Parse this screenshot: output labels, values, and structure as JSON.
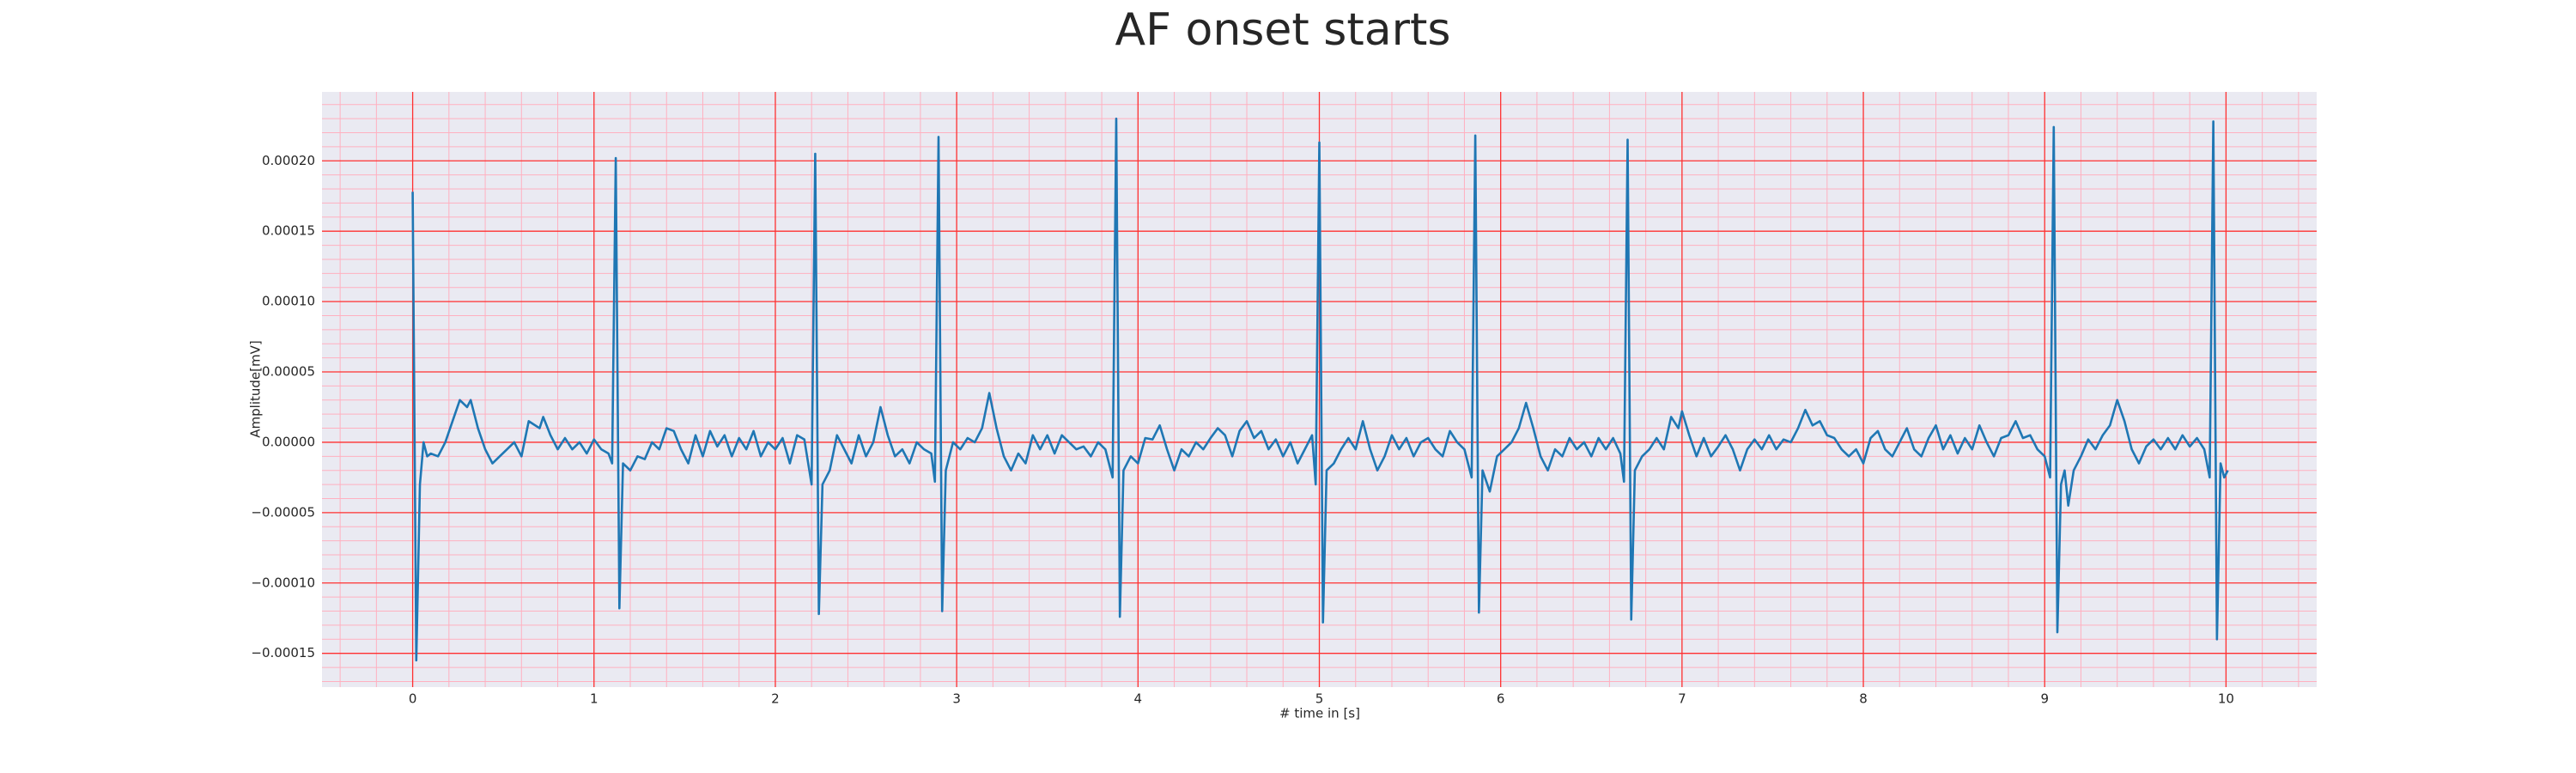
{
  "chart_data": {
    "type": "line",
    "title": "AF onset starts",
    "xlabel": "# time in [s]",
    "ylabel": "Amplitude[mV]",
    "x": [
      0,
      0.02,
      0.04,
      0.06,
      0.08,
      0.1,
      0.14,
      0.18,
      0.22,
      0.26,
      0.3,
      0.32,
      0.36,
      0.4,
      0.44,
      0.48,
      0.52,
      0.56,
      0.6,
      0.64,
      0.7,
      0.72,
      0.76,
      0.8,
      0.84,
      0.88,
      0.92,
      0.96,
      1.0,
      1.04,
      1.08,
      1.1,
      1.12,
      1.14,
      1.16,
      1.2,
      1.24,
      1.28,
      1.32,
      1.36,
      1.4,
      1.44,
      1.48,
      1.52,
      1.56,
      1.6,
      1.64,
      1.68,
      1.72,
      1.76,
      1.8,
      1.84,
      1.88,
      1.92,
      1.96,
      2.0,
      2.04,
      2.08,
      2.12,
      2.16,
      2.2,
      2.22,
      2.24,
      2.26,
      2.3,
      2.34,
      2.38,
      2.42,
      2.46,
      2.5,
      2.54,
      2.58,
      2.62,
      2.66,
      2.7,
      2.74,
      2.78,
      2.82,
      2.86,
      2.88,
      2.9,
      2.92,
      2.94,
      2.98,
      3.02,
      3.06,
      3.1,
      3.14,
      3.18,
      3.22,
      3.26,
      3.3,
      3.34,
      3.38,
      3.42,
      3.46,
      3.5,
      3.54,
      3.58,
      3.62,
      3.66,
      3.7,
      3.74,
      3.78,
      3.82,
      3.86,
      3.88,
      3.9,
      3.92,
      3.96,
      4.0,
      4.04,
      4.08,
      4.12,
      4.16,
      4.2,
      4.24,
      4.28,
      4.32,
      4.36,
      4.4,
      4.44,
      4.48,
      4.52,
      4.56,
      4.6,
      4.64,
      4.68,
      4.72,
      4.76,
      4.8,
      4.84,
      4.88,
      4.92,
      4.96,
      4.98,
      5.0,
      5.02,
      5.04,
      5.08,
      5.12,
      5.16,
      5.2,
      5.24,
      5.28,
      5.32,
      5.36,
      5.4,
      5.44,
      5.48,
      5.52,
      5.56,
      5.6,
      5.64,
      5.68,
      5.72,
      5.76,
      5.8,
      5.84,
      5.86,
      5.88,
      5.9,
      5.94,
      5.98,
      6.02,
      6.06,
      6.1,
      6.14,
      6.18,
      6.22,
      6.26,
      6.3,
      6.34,
      6.38,
      6.42,
      6.46,
      6.5,
      6.54,
      6.58,
      6.62,
      6.66,
      6.68,
      6.7,
      6.72,
      6.74,
      6.78,
      6.82,
      6.86,
      6.9,
      6.94,
      6.98,
      7.0,
      7.04,
      7.08,
      7.12,
      7.16,
      7.2,
      7.24,
      7.28,
      7.32,
      7.36,
      7.4,
      7.44,
      7.48,
      7.52,
      7.56,
      7.6,
      7.64,
      7.68,
      7.72,
      7.76,
      7.8,
      7.84,
      7.88,
      7.92,
      7.96,
      8.0,
      8.04,
      8.08,
      8.12,
      8.16,
      8.2,
      8.24,
      8.28,
      8.32,
      8.36,
      8.4,
      8.44,
      8.48,
      8.52,
      8.56,
      8.6,
      8.64,
      8.68,
      8.72,
      8.76,
      8.8,
      8.84,
      8.88,
      8.92,
      8.96,
      9.0,
      9.03,
      9.05,
      9.07,
      9.09,
      9.11,
      9.13,
      9.16,
      9.2,
      9.24,
      9.28,
      9.32,
      9.36,
      9.4,
      9.44,
      9.48,
      9.52,
      9.56,
      9.6,
      9.64,
      9.68,
      9.72,
      9.76,
      9.8,
      9.84,
      9.88,
      9.91,
      9.93,
      9.95,
      9.97,
      9.99,
      10.01
    ],
    "series": [
      {
        "color": "#1f77b4",
        "values": [
          0.000178,
          -0.000155,
          -3e-05,
          0,
          -1e-05,
          -8e-06,
          -1e-05,
          0,
          1.5e-05,
          3e-05,
          2.5e-05,
          3e-05,
          1e-05,
          -5e-06,
          -1.5e-05,
          -1e-05,
          -5e-06,
          0,
          -1e-05,
          1.5e-05,
          1e-05,
          1.8e-05,
          5e-06,
          -5e-06,
          3e-06,
          -5e-06,
          0,
          -8e-06,
          2e-06,
          -5e-06,
          -8e-06,
          -1.5e-05,
          0.000202,
          -0.000118,
          -1.5e-05,
          -2e-05,
          -1e-05,
          -1.2e-05,
          0,
          -5e-06,
          1e-05,
          8e-06,
          -5e-06,
          -1.5e-05,
          5e-06,
          -1e-05,
          8e-06,
          -3e-06,
          5e-06,
          -1e-05,
          3e-06,
          -5e-06,
          8e-06,
          -1e-05,
          0,
          -5e-06,
          3e-06,
          -1.5e-05,
          5e-06,
          2e-06,
          -3e-05,
          0.000205,
          -0.000122,
          -3e-05,
          -2e-05,
          5e-06,
          -5e-06,
          -1.5e-05,
          5e-06,
          -1e-05,
          0,
          2.5e-05,
          5e-06,
          -1e-05,
          -5e-06,
          -1.5e-05,
          0,
          -5e-06,
          -8e-06,
          -2.8e-05,
          0.000217,
          -0.00012,
          -2e-05,
          0,
          -5e-06,
          3e-06,
          0,
          1e-05,
          3.5e-05,
          1e-05,
          -1e-05,
          -2e-05,
          -8e-06,
          -1.5e-05,
          5e-06,
          -5e-06,
          5e-06,
          -8e-06,
          5e-06,
          0,
          -5e-06,
          -3e-06,
          -1e-05,
          0,
          -5e-06,
          -2.5e-05,
          0.00023,
          -0.000124,
          -2e-05,
          -1e-05,
          -1.5e-05,
          3e-06,
          2e-06,
          1.2e-05,
          -5e-06,
          -2e-05,
          -5e-06,
          -1e-05,
          0,
          -5e-06,
          3e-06,
          1e-05,
          5e-06,
          -1e-05,
          8e-06,
          1.5e-05,
          3e-06,
          8e-06,
          -5e-06,
          2e-06,
          -1e-05,
          0,
          -1.5e-05,
          -5e-06,
          5e-06,
          -3e-05,
          0.000213,
          -0.000128,
          -2e-05,
          -1.5e-05,
          -5e-06,
          3e-06,
          -5e-06,
          1.5e-05,
          -5e-06,
          -2e-05,
          -1e-05,
          5e-06,
          -5e-06,
          3e-06,
          -1e-05,
          0,
          3e-06,
          -5e-06,
          -1e-05,
          8e-06,
          0,
          -5e-06,
          -2.5e-05,
          0.000218,
          -0.000121,
          -2e-05,
          -3.5e-05,
          -1e-05,
          -5e-06,
          0,
          1e-05,
          2.8e-05,
          1e-05,
          -1e-05,
          -2e-05,
          -5e-06,
          -1e-05,
          3e-06,
          -5e-06,
          0,
          -1e-05,
          3e-06,
          -5e-06,
          3e-06,
          -8e-06,
          -2.8e-05,
          0.000215,
          -0.000126,
          -2e-05,
          -1e-05,
          -5e-06,
          3e-06,
          -5e-06,
          1.8e-05,
          1e-05,
          2.2e-05,
          5e-06,
          -1e-05,
          3e-06,
          -1e-05,
          -3e-06,
          5e-06,
          -5e-06,
          -2e-05,
          -5e-06,
          2e-06,
          -5e-06,
          5e-06,
          -5e-06,
          2e-06,
          0,
          1e-05,
          2.3e-05,
          1.2e-05,
          1.5e-05,
          5e-06,
          3e-06,
          -5e-06,
          -1e-05,
          -5e-06,
          -1.5e-05,
          3e-06,
          8e-06,
          -5e-06,
          -1e-05,
          0,
          1e-05,
          -5e-06,
          -1e-05,
          3e-06,
          1.2e-05,
          -5e-06,
          5e-06,
          -8e-06,
          3e-06,
          -5e-06,
          1.2e-05,
          0,
          -1e-05,
          3e-06,
          5e-06,
          1.5e-05,
          3e-06,
          5e-06,
          -5e-06,
          -1e-05,
          -2.5e-05,
          0.000224,
          -0.000135,
          -3e-05,
          -2e-05,
          -4.5e-05,
          -2e-05,
          -1e-05,
          2e-06,
          -5e-06,
          5e-06,
          1.2e-05,
          3e-05,
          1.5e-05,
          -5e-06,
          -1.5e-05,
          -3e-06,
          2e-06,
          -5e-06,
          3e-06,
          -5e-06,
          5e-06,
          -3e-06,
          3e-06,
          -5e-06,
          -2.5e-05,
          0.000228,
          -0.00014,
          -1.5e-05,
          -2.5e-05,
          -2e-05
        ]
      }
    ],
    "xlim": [
      -0.5,
      10.5
    ],
    "ylim": [
      -0.000174,
      0.000249
    ],
    "xticks": [
      0,
      1,
      2,
      3,
      4,
      5,
      6,
      7,
      8,
      9,
      10
    ],
    "yticks": [
      {
        "value": -0.00015,
        "label": "−0.00015"
      },
      {
        "value": -0.0001,
        "label": "−0.00010"
      },
      {
        "value": -5e-05,
        "label": "−0.00005"
      },
      {
        "value": 0,
        "label": "0.00000"
      },
      {
        "value": 5e-05,
        "label": "0.00005"
      },
      {
        "value": 0.0001,
        "label": "0.00010"
      },
      {
        "value": 0.00015,
        "label": "0.00015"
      },
      {
        "value": 0.0002,
        "label": "0.00020"
      }
    ],
    "grid": true,
    "minor_grid": true,
    "grid_color": "#ff3030",
    "minor_grid_color": "#ffb0c0",
    "background": "#eaeaf2"
  }
}
